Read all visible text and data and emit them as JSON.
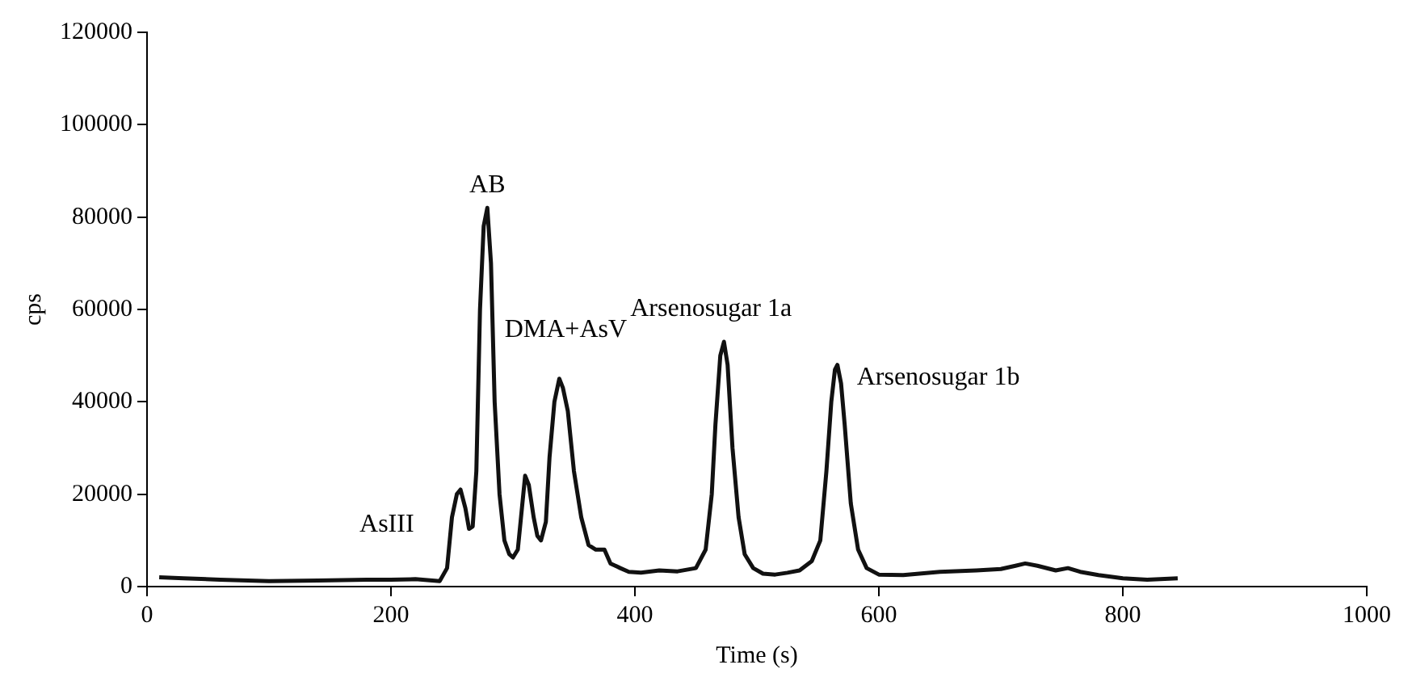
{
  "chart_data": {
    "type": "line",
    "xlabel": "Time (s)",
    "ylabel": "cps",
    "x": [
      10,
      30,
      60,
      100,
      140,
      180,
      200,
      220,
      240,
      246,
      250,
      254,
      257,
      261,
      264,
      267,
      270,
      273,
      276,
      279,
      282,
      285,
      289,
      293,
      297,
      300,
      304,
      307,
      310,
      313,
      317,
      320,
      323,
      327,
      330,
      334,
      338,
      341,
      345,
      350,
      356,
      362,
      368,
      375,
      380,
      388,
      395,
      405,
      420,
      435,
      450,
      458,
      463,
      466,
      470,
      473,
      476,
      480,
      485,
      490,
      497,
      505,
      515,
      525,
      535,
      545,
      552,
      557,
      561,
      564,
      566,
      569,
      572,
      577,
      583,
      590,
      600,
      620,
      650,
      680,
      700,
      712,
      720,
      730,
      745,
      755,
      765,
      780,
      800,
      820,
      845
    ],
    "series": [
      {
        "color": "#111111",
        "values": [
          2000,
          1800,
          1500,
          1200,
          1300,
          1500,
          1500,
          1600,
          1200,
          4000,
          15000,
          20000,
          21000,
          17000,
          12500,
          13000,
          25000,
          60000,
          78000,
          82000,
          70000,
          40000,
          20000,
          10000,
          7000,
          6300,
          8000,
          16000,
          24000,
          22000,
          15000,
          11000,
          10000,
          14000,
          28000,
          40000,
          45000,
          43000,
          38000,
          25000,
          15000,
          9000,
          8000,
          8000,
          5000,
          4000,
          3200,
          3000,
          3500,
          3300,
          4000,
          8000,
          20000,
          35000,
          50000,
          53000,
          48000,
          30000,
          15000,
          7000,
          4000,
          2800,
          2600,
          3000,
          3500,
          5500,
          10000,
          25000,
          40000,
          47000,
          48000,
          44000,
          35000,
          18000,
          8000,
          4000,
          2600,
          2500,
          3200,
          3500,
          3800,
          4500,
          5000,
          4500,
          3500,
          4000,
          3200,
          2500,
          1800,
          1500,
          1800
        ]
      }
    ],
    "xlim": [
      0,
      1000
    ],
    "xticks": [
      0,
      200,
      400,
      600,
      800,
      1000
    ],
    "ylim": [
      0,
      120000
    ],
    "yticks": [
      0,
      20000,
      40000,
      60000,
      80000,
      100000,
      120000
    ],
    "grid": false,
    "legend": false,
    "marker": "none",
    "line_style": "solid",
    "annotations": [
      {
        "text": "AsIII",
        "x": 256,
        "y": 21000
      },
      {
        "text": "AB",
        "x": 279,
        "y": 82000
      },
      {
        "text": "DMA+AsV",
        "x": 338,
        "y": 45000
      },
      {
        "text": "Arsenosugar 1a",
        "x": 473,
        "y": 53000
      },
      {
        "text": "Arsenosugar 1b",
        "x": 566,
        "y": 48000
      }
    ]
  }
}
